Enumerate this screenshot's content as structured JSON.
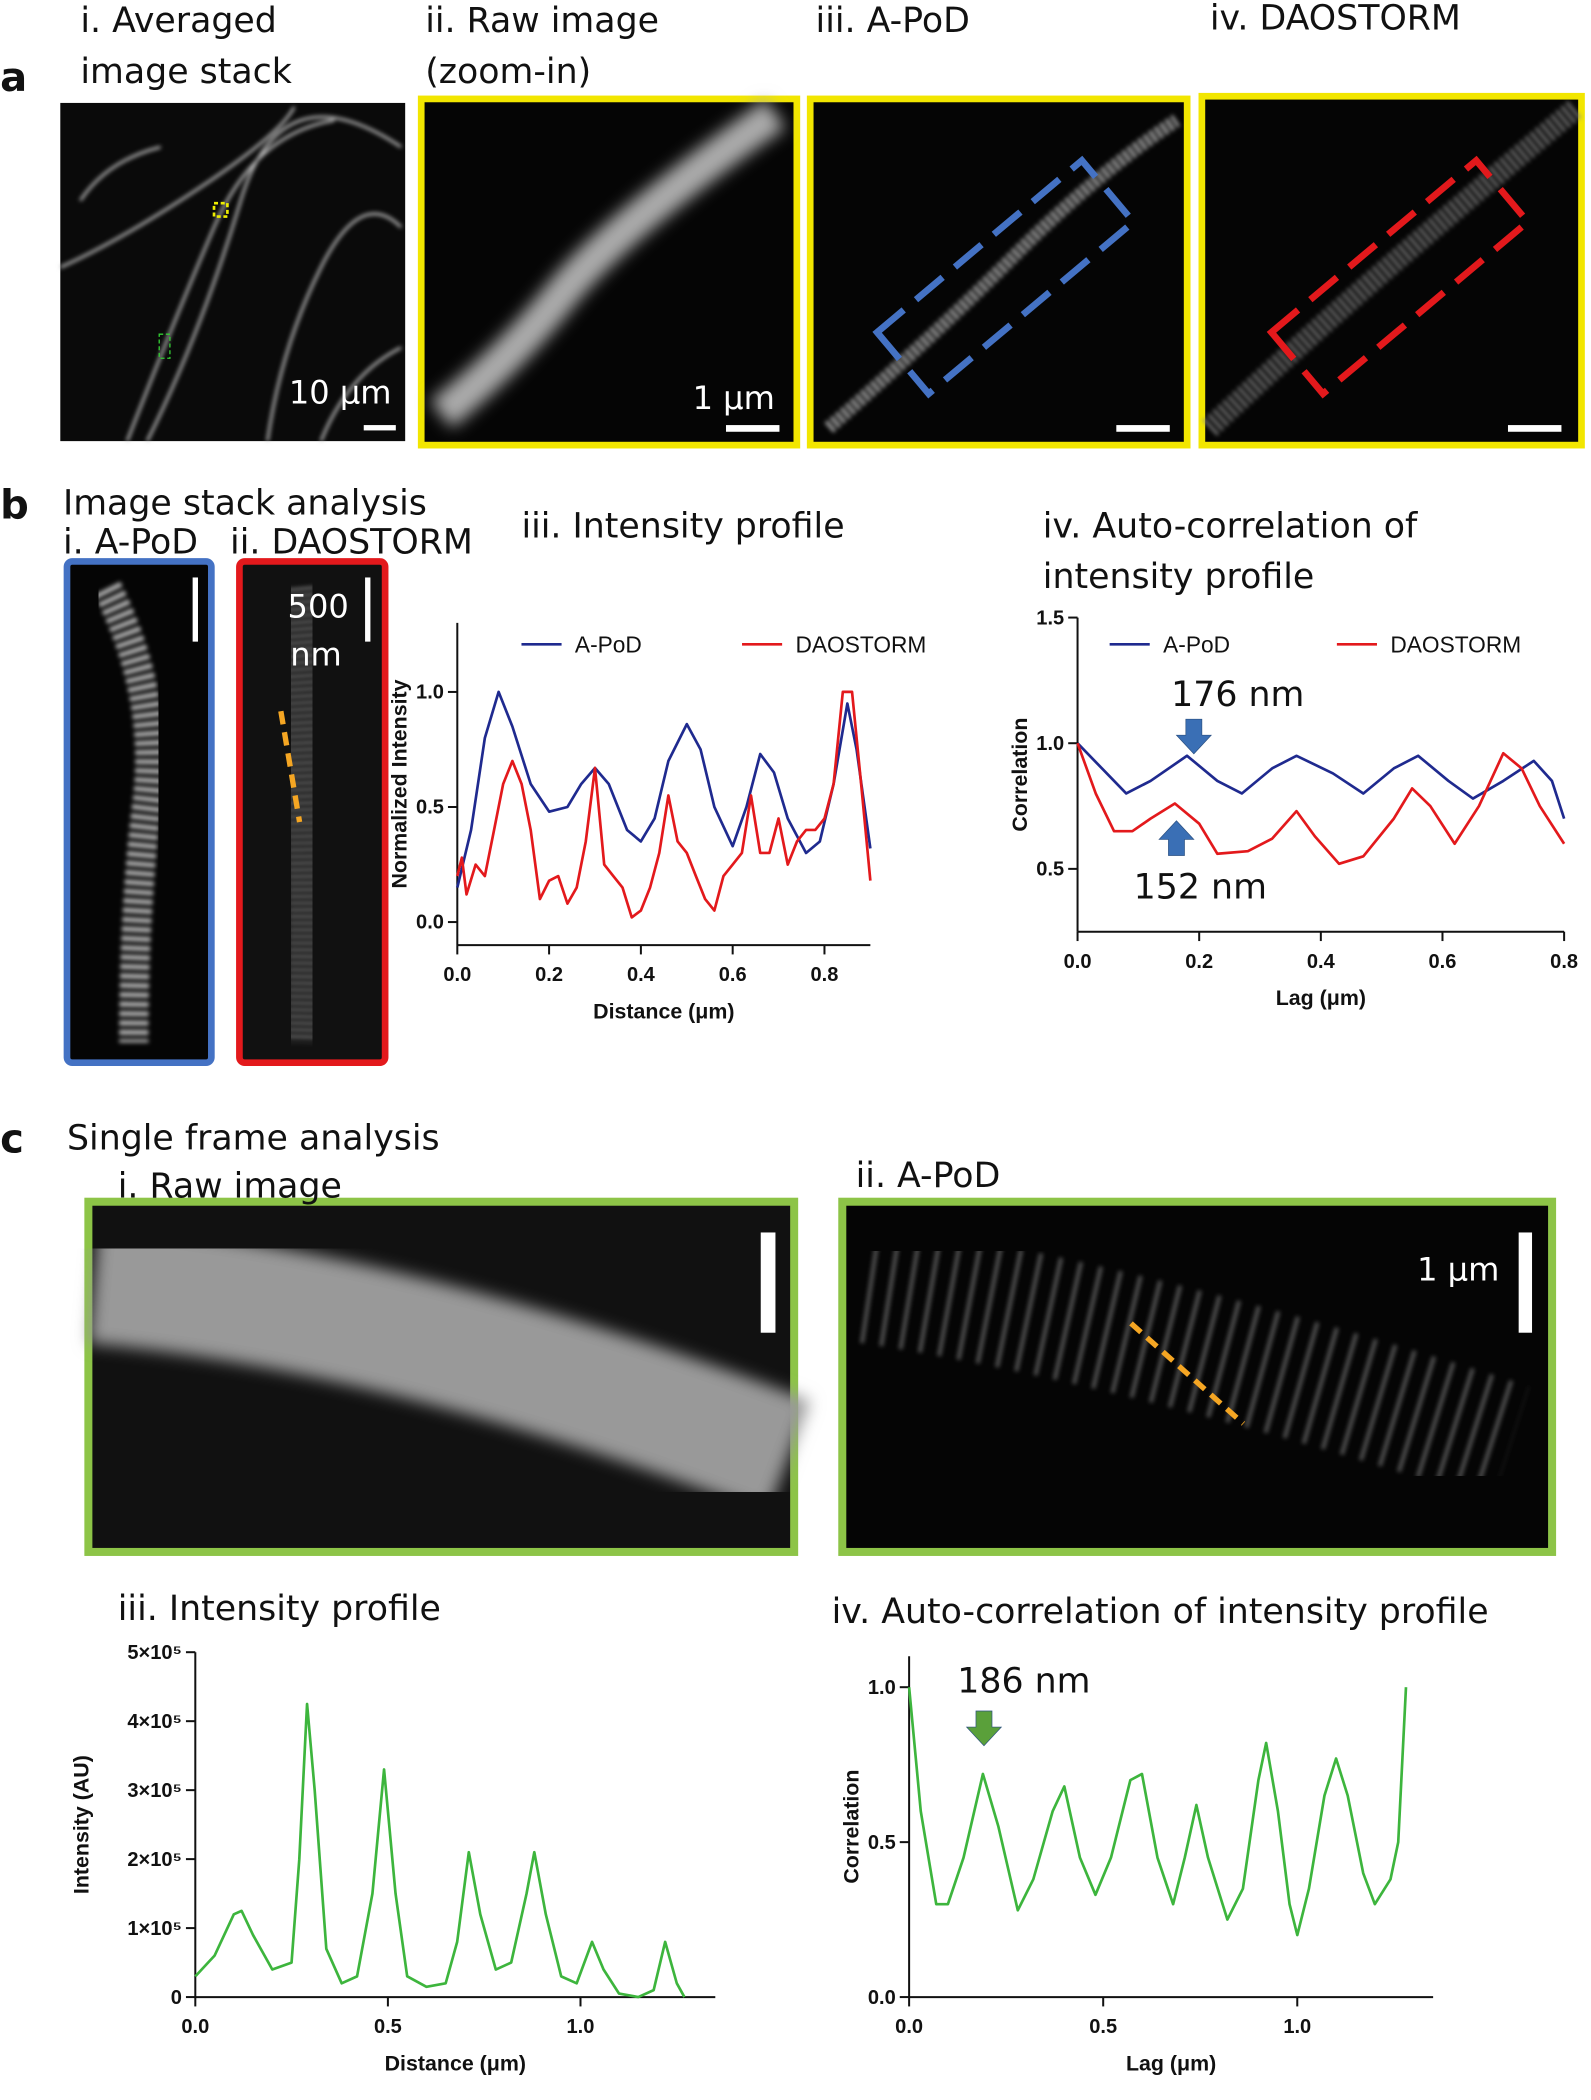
{
  "figure": {
    "panel_a": {
      "letter": "a",
      "captions": [
        [
          "i. Averaged",
          "image stack"
        ],
        [
          "ii. Raw image",
          "(zoom-in)"
        ],
        [
          "iii. A-PoD"
        ],
        [
          "iv. DAOSTORM"
        ]
      ],
      "scalebars": [
        "10 μm",
        "1 μm"
      ]
    },
    "panel_b": {
      "letter": "b",
      "heading": "Image stack analysis",
      "captions": [
        "i. A-PoD",
        "ii. DAOSTORM"
      ],
      "scalebar": [
        "500",
        "nm"
      ]
    },
    "panel_c": {
      "letter": "c",
      "heading": "Single frame analysis",
      "captions": [
        "i. Raw image",
        "ii. A-PoD"
      ],
      "scalebar": "1 μm"
    }
  },
  "chart_data": [
    {
      "type": "line",
      "title": [
        "iii. Intensity profile"
      ],
      "xlabel": "Distance (μm)",
      "ylabel": "Normalized Intensity",
      "xlim": [
        0,
        0.9
      ],
      "ylim": [
        -0.1,
        1.3
      ],
      "xticks": [
        {
          "value": 0,
          "label": "0.0"
        },
        0.2,
        0.4,
        0.6,
        0.8
      ],
      "yticks": [
        {
          "value": 0,
          "label": "0.0"
        },
        0.5,
        {
          "value": 1,
          "label": "1.0"
        }
      ],
      "legend": "top",
      "series": [
        {
          "name": "A-PoD",
          "color": "#1f2a8f",
          "x": [
            0,
            0.03,
            0.06,
            0.09,
            0.12,
            0.16,
            0.2,
            0.24,
            0.27,
            0.3,
            0.33,
            0.37,
            0.4,
            0.43,
            0.46,
            0.5,
            0.53,
            0.56,
            0.6,
            0.63,
            0.66,
            0.69,
            0.72,
            0.76,
            0.79,
            0.82,
            0.85,
            0.87,
            0.9
          ],
          "values": [
            0.15,
            0.4,
            0.8,
            1.0,
            0.85,
            0.6,
            0.48,
            0.5,
            0.6,
            0.67,
            0.6,
            0.4,
            0.35,
            0.45,
            0.7,
            0.86,
            0.75,
            0.5,
            0.33,
            0.5,
            0.73,
            0.65,
            0.45,
            0.3,
            0.35,
            0.6,
            0.95,
            0.75,
            0.32
          ]
        },
        {
          "name": "DAOSTORM",
          "color": "#e3191c",
          "x": [
            0,
            0.01,
            0.02,
            0.04,
            0.06,
            0.08,
            0.1,
            0.12,
            0.14,
            0.16,
            0.18,
            0.2,
            0.22,
            0.24,
            0.26,
            0.28,
            0.3,
            0.32,
            0.34,
            0.36,
            0.38,
            0.4,
            0.42,
            0.44,
            0.46,
            0.48,
            0.5,
            0.52,
            0.54,
            0.56,
            0.58,
            0.6,
            0.62,
            0.64,
            0.66,
            0.68,
            0.7,
            0.72,
            0.74,
            0.76,
            0.78,
            0.8,
            0.82,
            0.84,
            0.86,
            0.88,
            0.9
          ],
          "values": [
            0.2,
            0.28,
            0.12,
            0.25,
            0.2,
            0.4,
            0.6,
            0.7,
            0.6,
            0.4,
            0.1,
            0.18,
            0.2,
            0.08,
            0.15,
            0.35,
            0.67,
            0.25,
            0.2,
            0.15,
            0.02,
            0.05,
            0.15,
            0.3,
            0.55,
            0.35,
            0.3,
            0.2,
            0.1,
            0.05,
            0.2,
            0.25,
            0.3,
            0.55,
            0.3,
            0.3,
            0.45,
            0.25,
            0.35,
            0.4,
            0.4,
            0.45,
            0.6,
            1.0,
            1.0,
            0.6,
            0.18
          ]
        }
      ]
    },
    {
      "type": "line",
      "title": [
        "iv. Auto-correlation of",
        "intensity profile"
      ],
      "xlabel": "Lag (μm)",
      "ylabel": "Correlation",
      "xlim": [
        0,
        0.8
      ],
      "ylim": [
        0.25,
        1.5
      ],
      "xticks": [
        {
          "value": 0,
          "label": "0.0"
        },
        0.2,
        0.4,
        0.6,
        0.8
      ],
      "yticks": [
        0.5,
        {
          "value": 1,
          "label": "1.0"
        },
        1.5
      ],
      "legend": "top",
      "annotations": [
        "176 nm",
        "152 nm"
      ],
      "series": [
        {
          "name": "A-PoD",
          "color": "#1f2a8f",
          "x": [
            0,
            0.04,
            0.08,
            0.12,
            0.18,
            0.23,
            0.27,
            0.32,
            0.36,
            0.42,
            0.47,
            0.52,
            0.56,
            0.61,
            0.65,
            0.7,
            0.75,
            0.78,
            0.8
          ],
          "values": [
            1.0,
            0.9,
            0.8,
            0.85,
            0.95,
            0.85,
            0.8,
            0.9,
            0.95,
            0.88,
            0.8,
            0.9,
            0.95,
            0.85,
            0.78,
            0.85,
            0.93,
            0.85,
            0.7
          ]
        },
        {
          "name": "DAOSTORM",
          "color": "#e3191c",
          "x": [
            0,
            0.03,
            0.06,
            0.09,
            0.12,
            0.16,
            0.2,
            0.23,
            0.28,
            0.32,
            0.36,
            0.39,
            0.43,
            0.47,
            0.52,
            0.55,
            0.58,
            0.62,
            0.66,
            0.7,
            0.73,
            0.76,
            0.8
          ],
          "values": [
            1.0,
            0.8,
            0.65,
            0.65,
            0.7,
            0.76,
            0.68,
            0.56,
            0.57,
            0.62,
            0.73,
            0.63,
            0.52,
            0.55,
            0.7,
            0.82,
            0.75,
            0.6,
            0.75,
            0.96,
            0.9,
            0.75,
            0.6
          ]
        }
      ]
    },
    {
      "type": "line",
      "title": [
        "iii. Intensity profile"
      ],
      "xlabel": "Distance (μm)",
      "ylabel": "Intensity (AU)",
      "xlim": [
        0,
        1.35
      ],
      "ylim": [
        0,
        500000
      ],
      "xticks": [
        {
          "value": 0,
          "label": "0.0"
        },
        0.5,
        {
          "value": 1,
          "label": "1.0"
        }
      ],
      "yticks": [
        0,
        {
          "value": 100000,
          "label": "1×10⁵"
        },
        {
          "value": 200000,
          "label": "2×10⁵"
        },
        {
          "value": 300000,
          "label": "3×10⁵"
        },
        {
          "value": 400000,
          "label": "4×10⁵"
        },
        {
          "value": 500000,
          "label": "5×10⁵"
        }
      ],
      "series": [
        {
          "color": "#3db53d",
          "x": [
            0,
            0.05,
            0.1,
            0.12,
            0.15,
            0.2,
            0.25,
            0.27,
            0.29,
            0.31,
            0.34,
            0.38,
            0.42,
            0.46,
            0.49,
            0.52,
            0.55,
            0.6,
            0.65,
            0.68,
            0.71,
            0.74,
            0.78,
            0.82,
            0.86,
            0.88,
            0.91,
            0.95,
            0.99,
            1.03,
            1.06,
            1.1,
            1.15,
            1.19,
            1.22,
            1.25,
            1.27
          ],
          "values": [
            30000,
            60000,
            120000,
            125000,
            90000,
            40000,
            50000,
            200000,
            425000,
            300000,
            70000,
            20000,
            30000,
            150000,
            330000,
            150000,
            30000,
            15000,
            20000,
            80000,
            210000,
            120000,
            40000,
            50000,
            150000,
            210000,
            120000,
            30000,
            20000,
            80000,
            40000,
            5000,
            0,
            10000,
            80000,
            20000,
            0
          ]
        }
      ]
    },
    {
      "type": "line",
      "title": [
        "iv. Auto-correlation of intensity profile"
      ],
      "xlabel": "Lag (μm)",
      "ylabel": "Correlation",
      "xlim": [
        0,
        1.35
      ],
      "ylim": [
        0,
        1.1
      ],
      "xticks": [
        {
          "value": 0,
          "label": "0.0"
        },
        0.5,
        {
          "value": 1,
          "label": "1.0"
        }
      ],
      "yticks": [
        {
          "value": 0,
          "label": "0.0"
        },
        0.5,
        {
          "value": 1,
          "label": "1.0"
        }
      ],
      "annotations": [
        "186 nm"
      ],
      "series": [
        {
          "color": "#3db53d",
          "x": [
            0,
            0.03,
            0.07,
            0.1,
            0.14,
            0.19,
            0.23,
            0.28,
            0.32,
            0.37,
            0.4,
            0.44,
            0.48,
            0.52,
            0.57,
            0.6,
            0.64,
            0.68,
            0.71,
            0.74,
            0.77,
            0.82,
            0.86,
            0.9,
            0.92,
            0.95,
            0.98,
            1.0,
            1.03,
            1.07,
            1.1,
            1.13,
            1.17,
            1.2,
            1.24,
            1.26,
            1.28
          ],
          "values": [
            1.0,
            0.6,
            0.3,
            0.3,
            0.45,
            0.72,
            0.55,
            0.28,
            0.38,
            0.6,
            0.68,
            0.45,
            0.33,
            0.45,
            0.7,
            0.72,
            0.45,
            0.3,
            0.45,
            0.62,
            0.45,
            0.25,
            0.35,
            0.7,
            0.82,
            0.6,
            0.3,
            0.2,
            0.35,
            0.65,
            0.77,
            0.65,
            0.4,
            0.3,
            0.38,
            0.5,
            1.0
          ]
        }
      ]
    }
  ]
}
